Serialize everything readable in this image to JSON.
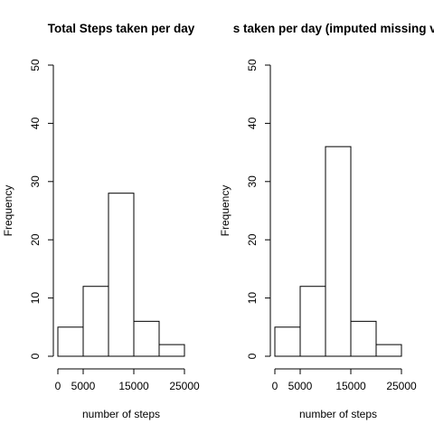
{
  "chart_data": [
    {
      "type": "bar",
      "title": "Total Steps taken per day",
      "xlabel": "number of steps",
      "ylabel": "Frequency",
      "bins": [
        [
          0,
          5000
        ],
        [
          5000,
          10000
        ],
        [
          10000,
          15000
        ],
        [
          15000,
          20000
        ],
        [
          20000,
          25000
        ]
      ],
      "values": [
        5,
        12,
        28,
        6,
        2
      ],
      "xlim": [
        0,
        25000
      ],
      "ylim": [
        0,
        50
      ],
      "xticks": [
        0,
        5000,
        15000,
        25000
      ],
      "yticks": [
        0,
        10,
        20,
        30,
        40,
        50
      ],
      "grid": false
    },
    {
      "type": "bar",
      "title": "s taken per day (imputed missing va",
      "xlabel": "number of steps",
      "ylabel": "Frequency",
      "bins": [
        [
          0,
          5000
        ],
        [
          5000,
          10000
        ],
        [
          10000,
          15000
        ],
        [
          15000,
          20000
        ],
        [
          20000,
          25000
        ]
      ],
      "values": [
        5,
        12,
        36,
        6,
        2
      ],
      "xlim": [
        0,
        25000
      ],
      "ylim": [
        0,
        50
      ],
      "xticks": [
        0,
        5000,
        15000,
        25000
      ],
      "yticks": [
        0,
        10,
        20,
        30,
        40,
        50
      ],
      "grid": false
    }
  ]
}
